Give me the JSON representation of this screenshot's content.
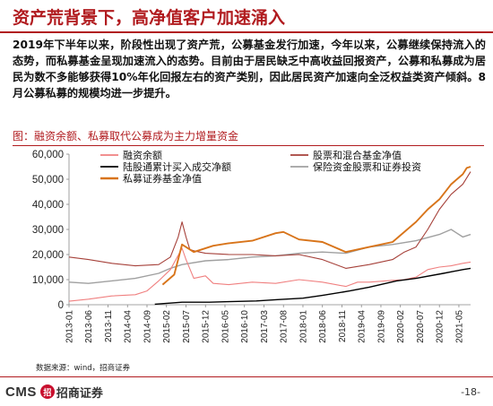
{
  "slide": {
    "title": "资产荒背景下，高净值客户加速涌入",
    "body": "2019年下半年以来，阶段性出现了资产荒，公募基金发行加速，今年以来，公募继续保持流入的态势，而私募基金呈现加速流入的态势。目前由于居民缺乏中高收益回报资产，公募和私募成为居民为数不多能够获得10%年化回报左右的资产类别，因此居民资产加速向全泛权益类资产倾斜。8月公募私募的规模均进一步提升。",
    "source": "数据来源：wind，招商证券",
    "page": "-18-"
  },
  "logo": {
    "latin": "CMS",
    "mark": "招",
    "cn": "招商证券"
  },
  "colors": {
    "accent": "#b11b1f",
    "financing": "#f08080",
    "equity_funds": "#a6413a",
    "northbound": "#000000",
    "insurance": "#a0a0a0",
    "private": "#d8741a"
  },
  "chart_data": {
    "type": "line",
    "caption": "图：融资余额、私募取代公募成为主力增量资金",
    "ylim": [
      0,
      60000
    ],
    "yticks": [
      0,
      10000,
      20000,
      30000,
      40000,
      50000,
      60000
    ],
    "ytick_labels": [
      "0",
      "10,000",
      "20,000",
      "30,000",
      "40,000",
      "50,000",
      "60,000"
    ],
    "x_ticks": [
      "2013-01",
      "2013-06",
      "2013-11",
      "2014-04",
      "2014-09",
      "2015-02",
      "2015-07",
      "2015-12",
      "2016-05",
      "2016-10",
      "2017-03",
      "2017-08",
      "2018-01",
      "2018-06",
      "2018-11",
      "2019-04",
      "2019-09",
      "2020-02",
      "2020-07",
      "2020-12",
      "2021-05"
    ],
    "x_start": "2013-01",
    "x_end": "2021-08",
    "legend": "top",
    "series": [
      {
        "name": "融资余额",
        "color_key": "financing",
        "x": [
          "2013-01",
          "2013-06",
          "2013-12",
          "2014-06",
          "2014-09",
          "2014-12",
          "2015-03",
          "2015-06",
          "2015-07",
          "2015-09",
          "2015-12",
          "2016-02",
          "2016-06",
          "2016-12",
          "2017-06",
          "2017-12",
          "2018-06",
          "2018-12",
          "2019-03",
          "2019-06",
          "2019-12",
          "2020-03",
          "2020-06",
          "2020-09",
          "2020-12",
          "2021-03",
          "2021-06",
          "2021-08"
        ],
        "values": [
          1400,
          2200,
          3500,
          4000,
          5500,
          9500,
          14000,
          22500,
          18000,
          10500,
          11500,
          8500,
          8000,
          9000,
          8500,
          10000,
          9000,
          7300,
          9000,
          9000,
          9700,
          10000,
          11000,
          14000,
          15000,
          15500,
          16500,
          17000
        ]
      },
      {
        "name": "股票和混合基金净值",
        "color_key": "equity_funds",
        "x": [
          "2013-01",
          "2013-06",
          "2013-12",
          "2014-06",
          "2014-12",
          "2015-03",
          "2015-05",
          "2015-06",
          "2015-07",
          "2015-08",
          "2015-09",
          "2015-12",
          "2016-06",
          "2016-12",
          "2017-06",
          "2017-12",
          "2018-06",
          "2018-12",
          "2019-06",
          "2019-12",
          "2020-03",
          "2020-06",
          "2020-09",
          "2020-12",
          "2021-03",
          "2021-06",
          "2021-08"
        ],
        "values": [
          19000,
          18000,
          16500,
          15500,
          16000,
          19000,
          27000,
          33000,
          27000,
          22000,
          21500,
          20500,
          20000,
          20000,
          19500,
          20000,
          18000,
          14500,
          16000,
          18000,
          21000,
          23000,
          30000,
          38000,
          44000,
          48000,
          53000
        ]
      },
      {
        "name": "陆股通累计买入成交净额",
        "color_key": "northbound",
        "x": [
          "2014-11",
          "2015-06",
          "2016-01",
          "2016-06",
          "2017-01",
          "2017-06",
          "2018-01",
          "2018-06",
          "2019-01",
          "2019-06",
          "2020-01",
          "2020-06",
          "2021-01",
          "2021-06",
          "2021-08"
        ],
        "values": [
          200,
          1000,
          1000,
          1200,
          1500,
          2000,
          2600,
          3700,
          5500,
          7000,
          9500,
          10500,
          12500,
          14000,
          14500
        ]
      },
      {
        "name": "保险资金股票和证券投资",
        "color_key": "insurance",
        "x": [
          "2013-01",
          "2013-06",
          "2014-06",
          "2014-12",
          "2015-03",
          "2015-06",
          "2015-12",
          "2016-06",
          "2016-12",
          "2017-06",
          "2017-12",
          "2018-06",
          "2018-12",
          "2019-06",
          "2019-12",
          "2020-06",
          "2020-12",
          "2021-03",
          "2021-06",
          "2021-08"
        ],
        "values": [
          9000,
          8500,
          10500,
          12500,
          14500,
          16000,
          17500,
          18000,
          19000,
          19500,
          20500,
          21000,
          20500,
          23000,
          24000,
          25500,
          28000,
          30000,
          27000,
          28000
        ]
      },
      {
        "name": "私募证券基金净值",
        "color_key": "private",
        "x": [
          "2015-01",
          "2015-04",
          "2015-06",
          "2015-09",
          "2016-02",
          "2016-06",
          "2016-12",
          "2017-06",
          "2017-08",
          "2017-12",
          "2018-06",
          "2018-12",
          "2019-06",
          "2019-12",
          "2020-06",
          "2020-09",
          "2020-12",
          "2021-03",
          "2021-06",
          "2021-07",
          "2021-08"
        ],
        "values": [
          8000,
          12000,
          24000,
          21000,
          23500,
          24500,
          25500,
          28500,
          29000,
          26000,
          25000,
          21000,
          23000,
          25000,
          33000,
          38000,
          42000,
          48000,
          52000,
          54500,
          55000
        ]
      }
    ]
  }
}
